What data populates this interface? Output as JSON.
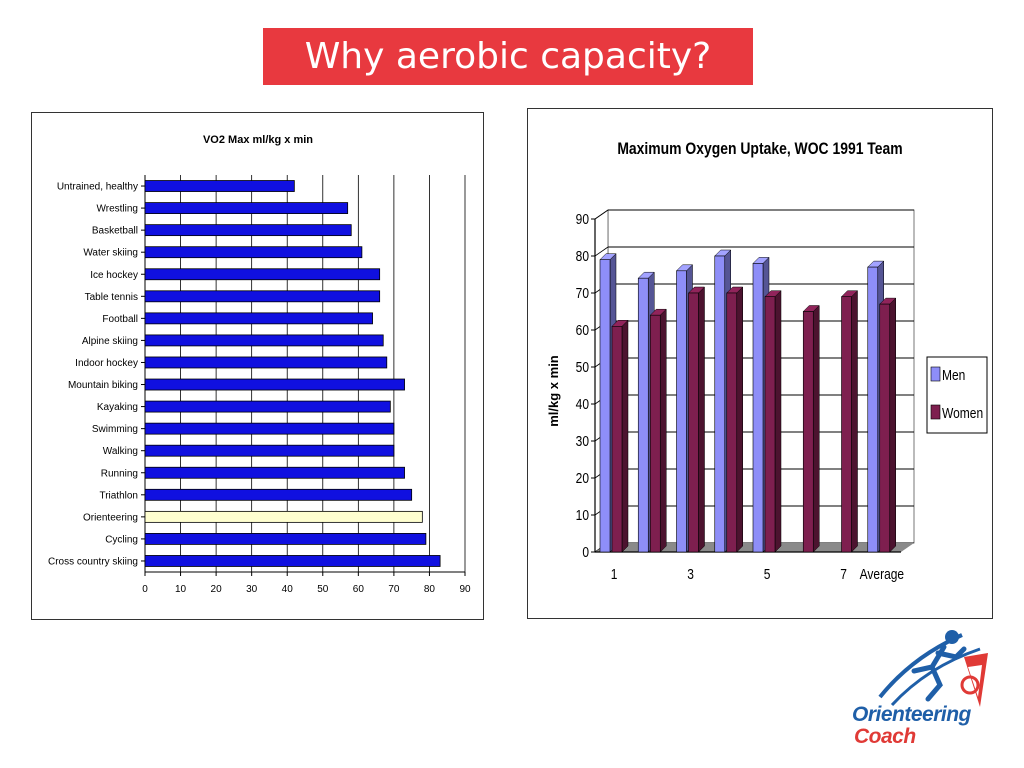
{
  "slide": {
    "title": "Why aerobic capacity?"
  },
  "logo": {
    "line1": "Orienteering",
    "line2": "Coach",
    "colors": {
      "blue": "#1f5fa8",
      "red": "#e03a36"
    }
  },
  "colors": {
    "title_bg": "#e8393f",
    "bar_blue": "#1010e0",
    "highlight": "#ffffd0",
    "men": "#8e8ef8",
    "women": "#7e1f4f",
    "floor": "#8a8a8a"
  },
  "chart_data": [
    {
      "type": "bar",
      "orientation": "horizontal",
      "title": "VO2 Max ml/kg x min",
      "categories": [
        "Untrained, healthy",
        "Wrestling",
        "Basketball",
        "Water skiing",
        "Ice hockey",
        "Table tennis",
        "Football",
        "Alpine skiing",
        "Indoor hockey",
        "Mountain biking",
        "Kayaking",
        "Swimming",
        "Walking",
        "Running",
        "Triathlon",
        "Orienteering",
        "Cycling",
        "Cross country skiing"
      ],
      "values": [
        42,
        57,
        58,
        61,
        66,
        66,
        64,
        67,
        68,
        73,
        69,
        70,
        70,
        73,
        75,
        78,
        79,
        83
      ],
      "highlight": "Orienteering",
      "xlim": [
        0,
        90
      ],
      "xticks": [
        "0",
        "10",
        "20",
        "30",
        "40",
        "50",
        "60",
        "70",
        "80",
        "90"
      ],
      "grid": true
    },
    {
      "type": "bar",
      "title": "Maximum Oxygen Uptake, WOC 1991 Team",
      "ylabel": "ml/kg x min",
      "ylim": [
        0,
        90
      ],
      "yticks": [
        "0",
        "10",
        "20",
        "30",
        "40",
        "50",
        "60",
        "70",
        "80",
        "90"
      ],
      "categories": [
        "1",
        "2",
        "3",
        "4",
        "5",
        "6",
        "7",
        "Average"
      ],
      "xtick_labels": [
        "1",
        "",
        "3",
        "",
        "5",
        "",
        "7",
        "Average"
      ],
      "series": [
        {
          "name": "Men",
          "values": [
            79,
            74,
            76,
            80,
            78,
            null,
            null,
            77
          ]
        },
        {
          "name": "Women",
          "values": [
            61,
            64,
            70,
            70,
            69,
            65,
            69,
            67
          ]
        }
      ],
      "legend": "right",
      "grid": true
    }
  ]
}
